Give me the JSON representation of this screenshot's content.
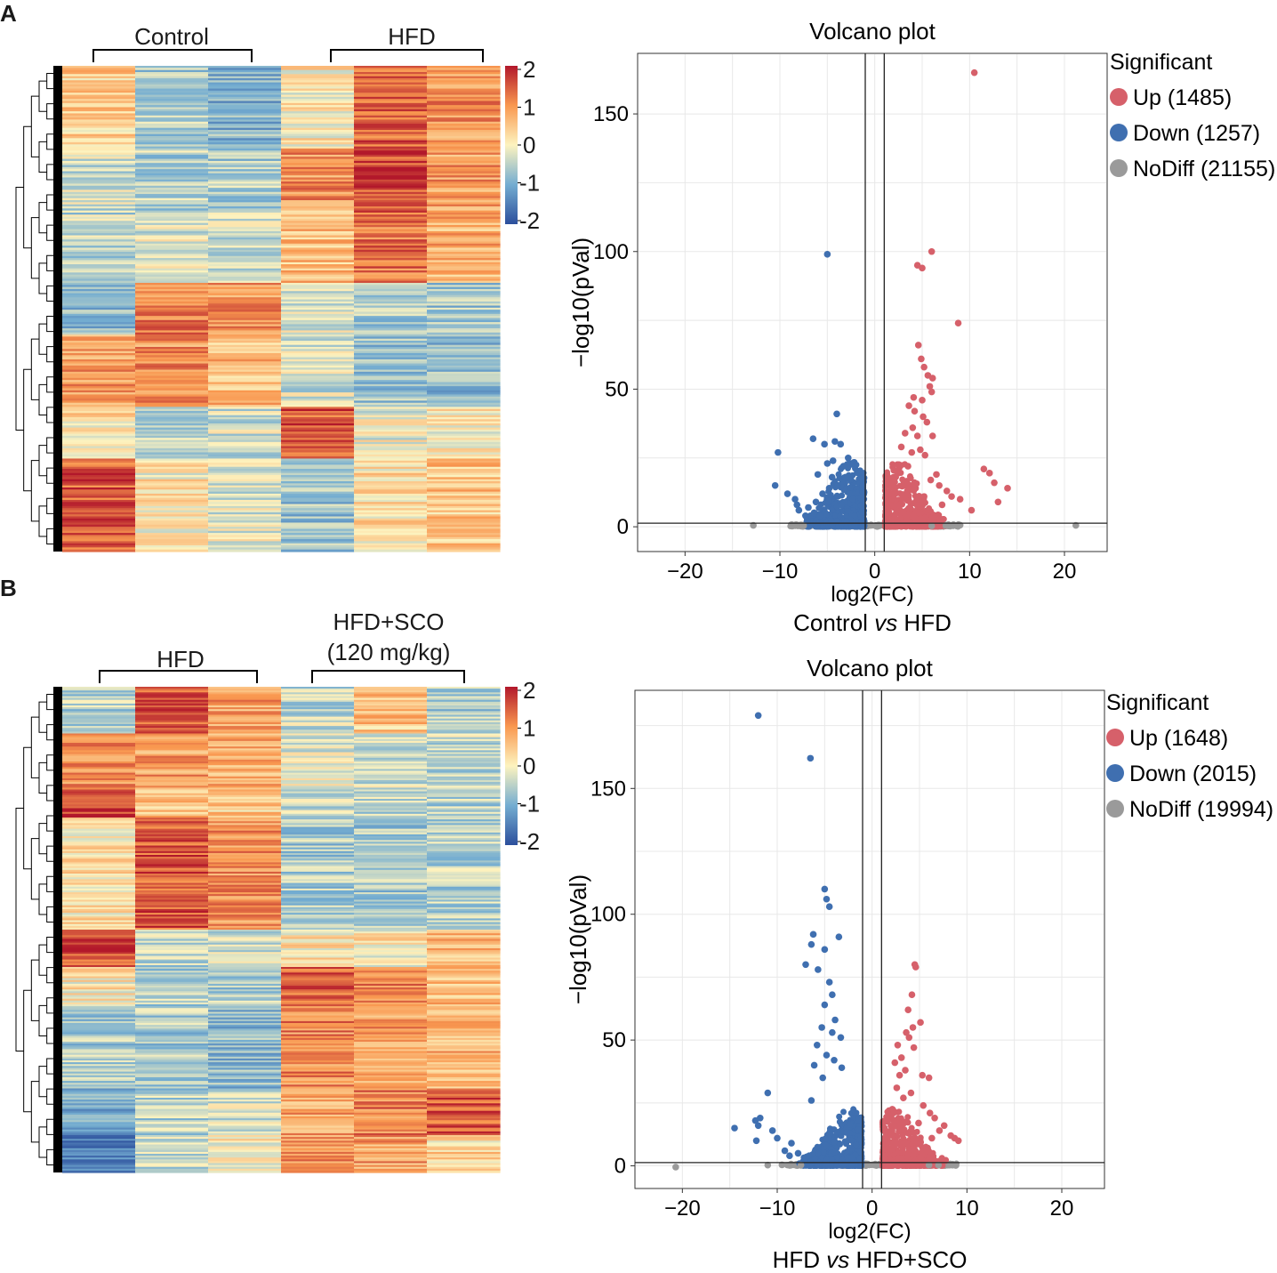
{
  "panels": [
    {
      "letter": "A",
      "heatmap": {
        "group_labels": [
          "Control",
          "HFD"
        ],
        "colorbar_ticks": [
          "2",
          "1",
          "0",
          "-1",
          "-2"
        ],
        "colors": {
          "high": "#b2182b",
          "mid": "#fdf3bf",
          "low": "#2c4f9c"
        }
      },
      "volcano": {
        "title": "Volcano plot",
        "xlabel": "log2(FC)",
        "ylabel": "−log10(pVal)",
        "x_ticks": [
          "−20",
          "−10",
          "0",
          "10",
          "20"
        ],
        "y_ticks": [
          "0",
          "50",
          "100",
          "150"
        ],
        "caption_left": "Control ",
        "caption_vs": "vs",
        "caption_right": " HFD",
        "legend": {
          "title": "Significant",
          "items": [
            {
              "label": "Up (1485)",
              "color": "#d6606a"
            },
            {
              "label": "Down (1257)",
              "color": "#3f6fb0"
            },
            {
              "label": "NoDiff (21155)",
              "color": "#9a9a9a"
            }
          ]
        }
      }
    },
    {
      "letter": "B",
      "heatmap": {
        "group_labels": [
          "HFD",
          "HFD+SCO\n(120 mg/kg)"
        ],
        "group_label_lines": [
          "HFD+SCO",
          "(120 mg/kg)"
        ],
        "colorbar_ticks": [
          "2",
          "1",
          "0",
          "-1",
          "-2"
        ],
        "colors": {
          "high": "#b2182b",
          "mid": "#fdf3bf",
          "low": "#2c4f9c"
        }
      },
      "volcano": {
        "title": "Volcano plot",
        "xlabel": "log2(FC)",
        "ylabel": "−log10(pVal)",
        "x_ticks": [
          "−20",
          "−10",
          "0",
          "10",
          "20"
        ],
        "y_ticks": [
          "0",
          "50",
          "100",
          "150"
        ],
        "caption_left": "HFD ",
        "caption_vs": "vs",
        "caption_right": " HFD+SCO",
        "legend": {
          "title": "Significant",
          "items": [
            {
              "label": "Up (1648)",
              "color": "#d6606a"
            },
            {
              "label": "Down (2015)",
              "color": "#3f6fb0"
            },
            {
              "label": "NoDiff (19994)",
              "color": "#9a9a9a"
            }
          ]
        }
      }
    }
  ],
  "chart_data": [
    {
      "type": "heatmap",
      "title": "",
      "columns": [
        "Control",
        "Control",
        "Control",
        "HFD",
        "HFD",
        "HFD"
      ],
      "value_range": [
        -2,
        2
      ],
      "row_blocks": [
        {
          "rows": 40,
          "means": [
            0.4,
            -0.6,
            -0.9,
            0.1,
            1.4,
            1.0
          ]
        },
        {
          "rows": 30,
          "means": [
            -0.3,
            -0.5,
            -0.6,
            1.0,
            1.6,
            0.9
          ]
        },
        {
          "rows": 35,
          "means": [
            -0.4,
            -0.2,
            -0.3,
            0.6,
            1.3,
            0.7
          ]
        },
        {
          "rows": 25,
          "means": [
            -0.8,
            1.2,
            1.0,
            -0.2,
            -0.6,
            -0.6
          ]
        },
        {
          "rows": 35,
          "means": [
            0.9,
            1.0,
            0.6,
            -0.3,
            -0.7,
            -0.8
          ]
        },
        {
          "rows": 25,
          "means": [
            0.2,
            -0.4,
            -0.3,
            1.5,
            -0.1,
            0.0
          ]
        },
        {
          "rows": 45,
          "means": [
            1.5,
            0.1,
            -0.2,
            -0.7,
            0.2,
            0.5
          ]
        }
      ]
    },
    {
      "type": "scatter",
      "title": "Volcano plot",
      "xlabel": "log2(FC)",
      "ylabel": "−log10(pVal)",
      "xlim": [
        -25,
        24.5
      ],
      "ylim": [
        -9,
        172
      ],
      "thresholds": {
        "x": [
          -1,
          1
        ],
        "y": 1.3
      },
      "series": [
        {
          "name": "Up (1485)",
          "points": [
            [
              10.5,
              165
            ],
            [
              6,
              100
            ],
            [
              4.5,
              95
            ],
            [
              5,
              94
            ],
            [
              8.8,
              74
            ],
            [
              4.6,
              66
            ],
            [
              4.9,
              61
            ],
            [
              5.2,
              58
            ],
            [
              5.6,
              55
            ],
            [
              6.1,
              54
            ],
            [
              5.8,
              51
            ],
            [
              6,
              49
            ],
            [
              4.1,
              47
            ],
            [
              5,
              46
            ],
            [
              3.6,
              44
            ],
            [
              4.2,
              42
            ],
            [
              5.1,
              40
            ],
            [
              5.5,
              38
            ],
            [
              4,
              36
            ],
            [
              3.2,
              34
            ],
            [
              4.5,
              33
            ],
            [
              6.1,
              33
            ],
            [
              2.8,
              29
            ],
            [
              4.8,
              28
            ],
            [
              3.9,
              27
            ],
            [
              5.3,
              26
            ],
            [
              11.5,
              21
            ],
            [
              12.1,
              19.5
            ],
            [
              6.5,
              19
            ],
            [
              14,
              14
            ],
            [
              12.6,
              16
            ],
            [
              13,
              9
            ],
            [
              10.2,
              6
            ],
            [
              7.6,
              13
            ],
            [
              8.1,
              11
            ],
            [
              9,
              10
            ],
            [
              6.8,
              15
            ],
            [
              3.5,
              22
            ],
            [
              2.4,
              20
            ],
            [
              5.9,
              17
            ],
            [
              7.1,
              8
            ],
            [
              4.3,
              14
            ],
            [
              2.1,
              12
            ],
            [
              3.1,
              16
            ],
            [
              5.2,
              11
            ]
          ]
        },
        {
          "name": "Down (1257)",
          "points": [
            [
              -5,
              99
            ],
            [
              -4,
              41
            ],
            [
              -6.5,
              32
            ],
            [
              -5.3,
              30
            ],
            [
              -4.2,
              31
            ],
            [
              -3.6,
              30
            ],
            [
              -10.2,
              27
            ],
            [
              -4.4,
              24
            ],
            [
              -5,
              23
            ],
            [
              -2.8,
              25
            ],
            [
              -3.3,
              22
            ],
            [
              -4.5,
              18
            ],
            [
              -6,
              19
            ],
            [
              -10.5,
              15
            ],
            [
              -9.2,
              12
            ],
            [
              -8.4,
              10
            ],
            [
              -8.2,
              8
            ],
            [
              -8,
              6
            ],
            [
              -7,
              7
            ],
            [
              -6.2,
              9
            ],
            [
              -5.5,
              12
            ],
            [
              -3.9,
              15
            ],
            [
              -3.1,
              18
            ],
            [
              -4.8,
              14
            ],
            [
              -2.3,
              10
            ],
            [
              -3.5,
              8
            ],
            [
              -6.4,
              5
            ],
            [
              -7.3,
              4
            ]
          ]
        },
        {
          "name": "NoDiff (21155)",
          "points": [
            [
              -12.8,
              0.5
            ],
            [
              21.2,
              0.5
            ],
            [
              9,
              0.6
            ],
            [
              -7.5,
              0.4
            ],
            [
              7.5,
              0.4
            ],
            [
              6,
              0.3
            ]
          ]
        }
      ]
    },
    {
      "type": "heatmap",
      "title": "",
      "columns": [
        "HFD",
        "HFD",
        "HFD",
        "HFD+SCO",
        "HFD+SCO",
        "HFD+SCO"
      ],
      "value_range": [
        -2,
        2
      ],
      "row_blocks": [
        {
          "rows": 25,
          "means": [
            -0.5,
            1.5,
            0.9,
            -0.4,
            0.5,
            -0.6
          ]
        },
        {
          "rows": 30,
          "means": [
            1.0,
            0.9,
            0.8,
            -0.2,
            -0.3,
            -0.4
          ]
        },
        {
          "rows": 15,
          "means": [
            1.8,
            0.6,
            0.4,
            -0.4,
            -0.5,
            -0.5
          ]
        },
        {
          "rows": 60,
          "means": [
            0.2,
            1.5,
            1.0,
            -0.6,
            -0.6,
            -0.5
          ]
        },
        {
          "rows": 20,
          "means": [
            1.6,
            -0.4,
            -0.3,
            0.2,
            0.1,
            0.6
          ]
        },
        {
          "rows": 20,
          "means": [
            0.1,
            -0.5,
            -0.6,
            1.4,
            1.1,
            0.6
          ]
        },
        {
          "rows": 45,
          "means": [
            -0.6,
            -0.6,
            -0.8,
            1.1,
            0.9,
            0.7
          ]
        },
        {
          "rows": 25,
          "means": [
            -1.0,
            -0.5,
            -0.3,
            0.8,
            1.2,
            1.5
          ]
        },
        {
          "rows": 20,
          "means": [
            -1.4,
            -0.4,
            0.0,
            1.0,
            0.9,
            0.3
          ]
        }
      ]
    },
    {
      "type": "scatter",
      "title": "Volcano plot",
      "xlabel": "log2(FC)",
      "ylabel": "−log10(pVal)",
      "xlim": [
        -25,
        24.5
      ],
      "ylim": [
        -9,
        189
      ],
      "thresholds": {
        "x": [
          -1,
          1
        ],
        "y": 1.3
      },
      "series": [
        {
          "name": "Up (1648)",
          "points": [
            [
              4.5,
              80
            ],
            [
              4.6,
              79
            ],
            [
              4.2,
              68
            ],
            [
              3.8,
              62
            ],
            [
              5.1,
              57
            ],
            [
              4.3,
              55
            ],
            [
              3.6,
              53
            ],
            [
              3.9,
              51
            ],
            [
              2.7,
              48
            ],
            [
              4.4,
              47
            ],
            [
              3.1,
              43
            ],
            [
              2.4,
              41
            ],
            [
              3.5,
              38
            ],
            [
              2.9,
              36
            ],
            [
              5.3,
              36
            ],
            [
              6,
              35
            ],
            [
              2.6,
              31
            ],
            [
              4.1,
              29
            ],
            [
              3.3,
              27
            ],
            [
              5.4,
              24
            ],
            [
              6.1,
              21
            ],
            [
              6.6,
              19
            ],
            [
              7.6,
              16
            ],
            [
              7.1,
              14
            ],
            [
              8.3,
              12
            ],
            [
              8.7,
              11
            ],
            [
              6.3,
              11
            ],
            [
              9.1,
              10
            ],
            [
              2.2,
              12
            ],
            [
              4.9,
              17
            ]
          ]
        },
        {
          "name": "Down (2015)",
          "points": [
            [
              -12,
              179
            ],
            [
              -6.5,
              162
            ],
            [
              -5,
              110
            ],
            [
              -4.8,
              106
            ],
            [
              -4.5,
              103
            ],
            [
              -6.2,
              92
            ],
            [
              -3.5,
              91
            ],
            [
              -6.4,
              88
            ],
            [
              -5,
              86
            ],
            [
              -7,
              80
            ],
            [
              -5.7,
              78
            ],
            [
              -4.5,
              73
            ],
            [
              -4.2,
              68
            ],
            [
              -5,
              64
            ],
            [
              -3.9,
              58
            ],
            [
              -5.3,
              55
            ],
            [
              -4.2,
              53
            ],
            [
              -3.3,
              51
            ],
            [
              -5.8,
              48
            ],
            [
              -4.8,
              44
            ],
            [
              -4,
              42
            ],
            [
              -6.1,
              40
            ],
            [
              -3.2,
              39
            ],
            [
              -5.2,
              35
            ],
            [
              -11,
              29
            ],
            [
              -6.4,
              26
            ],
            [
              -11.8,
              19
            ],
            [
              -12.3,
              18
            ],
            [
              -12,
              16
            ],
            [
              -14.5,
              15
            ],
            [
              -10.5,
              14
            ],
            [
              -10,
              11
            ],
            [
              -12.2,
              10
            ],
            [
              -8.5,
              9
            ],
            [
              -9.2,
              6
            ],
            [
              -7.8,
              5
            ],
            [
              -8.7,
              4
            ]
          ]
        },
        {
          "name": "NoDiff (19994)",
          "points": [
            [
              -20.7,
              -0.5
            ],
            [
              -11,
              0.3
            ],
            [
              -9.5,
              0.4
            ],
            [
              -7.5,
              0.3
            ],
            [
              7,
              0.3
            ],
            [
              8.5,
              0.4
            ],
            [
              6,
              0.3
            ]
          ]
        }
      ]
    }
  ]
}
